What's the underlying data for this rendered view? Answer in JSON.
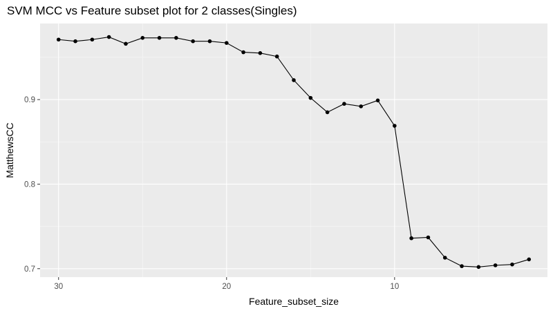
{
  "chart_data": {
    "type": "line",
    "title": "SVM MCC vs Feature subset plot for 2 classes(Singles)",
    "xlabel": "Feature_subset_size",
    "ylabel": "MatthewsCC",
    "x_reversed": true,
    "xlim": [
      31.1,
      0.9
    ],
    "ylim": [
      0.69,
      0.99
    ],
    "xticks": [
      30,
      20,
      10
    ],
    "xtick_labels": [
      "30",
      "20",
      "10"
    ],
    "yticks": [
      0.7,
      0.8,
      0.9
    ],
    "ytick_labels": [
      "0.7",
      "0.8",
      "0.9"
    ],
    "grid": true,
    "legend": "none",
    "colors": {
      "panel": "#ebebeb",
      "grid_major": "#ffffff",
      "line": "#000000",
      "point": "#000000"
    },
    "series": [
      {
        "x": [
          30,
          29,
          28,
          27,
          26,
          25,
          24,
          23,
          22,
          21,
          20,
          19,
          18,
          17,
          16,
          15,
          14,
          13,
          12,
          11,
          10,
          9,
          8,
          7,
          6,
          5,
          4,
          3,
          2
        ],
        "values": [
          0.971,
          0.969,
          0.971,
          0.974,
          0.966,
          0.973,
          0.973,
          0.973,
          0.969,
          0.969,
          0.967,
          0.956,
          0.955,
          0.951,
          0.923,
          0.902,
          0.885,
          0.895,
          0.892,
          0.899,
          0.869,
          0.736,
          0.737,
          0.713,
          0.703,
          0.702,
          0.704,
          0.705,
          0.711
        ]
      }
    ]
  }
}
